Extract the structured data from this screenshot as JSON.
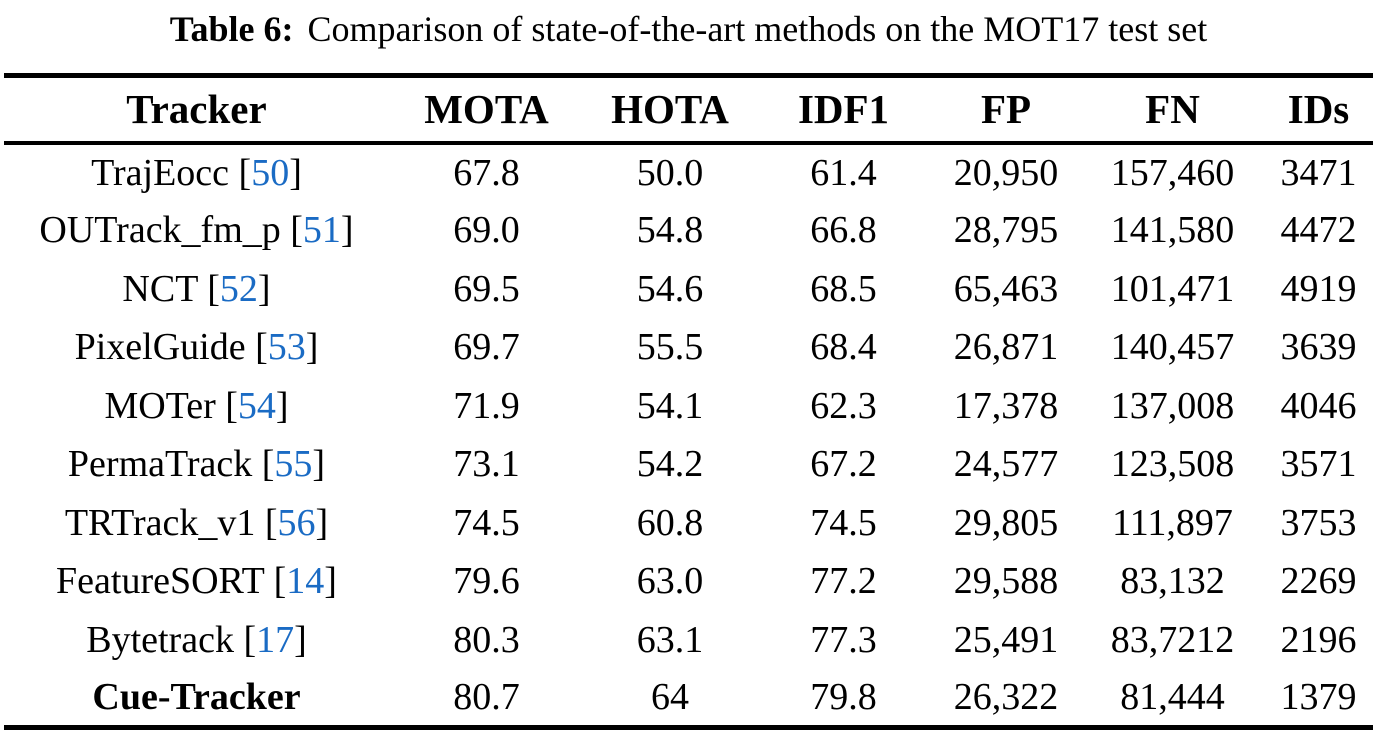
{
  "caption": {
    "label": "Table 6:",
    "text": "Comparison of state-of-the-art methods on the MOT17 test set"
  },
  "colors": {
    "citation_blue": "#1a6bc4",
    "text": "#000000",
    "background": "#ffffff",
    "rule": "#000000"
  },
  "chart_data": {
    "type": "table",
    "title": "Comparison of state-of-the-art methods on the MOT17 test set",
    "columns": [
      "Tracker",
      "MOTA",
      "HOTA",
      "IDF1",
      "FP",
      "FN",
      "IDs"
    ],
    "rows": [
      {
        "tracker": "TrajEocc",
        "ref": "50",
        "bold": false,
        "values": [
          "67.8",
          "50.0",
          "61.4",
          "20,950",
          "157,460",
          "3471"
        ]
      },
      {
        "tracker": "OUTrack_fm_p",
        "ref": "51",
        "bold": false,
        "values": [
          "69.0",
          "54.8",
          "66.8",
          "28,795",
          "141,580",
          "4472"
        ]
      },
      {
        "tracker": "NCT",
        "ref": "52",
        "bold": false,
        "values": [
          "69.5",
          "54.6",
          "68.5",
          "65,463",
          "101,471",
          "4919"
        ]
      },
      {
        "tracker": "PixelGuide",
        "ref": "53",
        "bold": false,
        "values": [
          "69.7",
          "55.5",
          "68.4",
          "26,871",
          "140,457",
          "3639"
        ]
      },
      {
        "tracker": "MOTer",
        "ref": "54",
        "bold": false,
        "values": [
          "71.9",
          "54.1",
          "62.3",
          "17,378",
          "137,008",
          "4046"
        ]
      },
      {
        "tracker": "PermaTrack",
        "ref": "55",
        "bold": false,
        "values": [
          "73.1",
          "54.2",
          "67.2",
          "24,577",
          "123,508",
          "3571"
        ]
      },
      {
        "tracker": "TRTrack_v1",
        "ref": "56",
        "bold": false,
        "values": [
          "74.5",
          "60.8",
          "74.5",
          "29,805",
          "111,897",
          "3753"
        ]
      },
      {
        "tracker": "FeatureSORT",
        "ref": "14",
        "bold": false,
        "values": [
          "79.6",
          "63.0",
          "77.2",
          "29,588",
          "83,132",
          "2269"
        ]
      },
      {
        "tracker": "Bytetrack",
        "ref": "17",
        "bold": false,
        "values": [
          "80.3",
          "63.1",
          "77.3",
          "25,491",
          "83,7212",
          "2196"
        ]
      },
      {
        "tracker": "Cue-Tracker",
        "ref": null,
        "bold": true,
        "values": [
          "80.7",
          "64",
          "79.8",
          "26,322",
          "81,444",
          "1379"
        ]
      }
    ]
  }
}
